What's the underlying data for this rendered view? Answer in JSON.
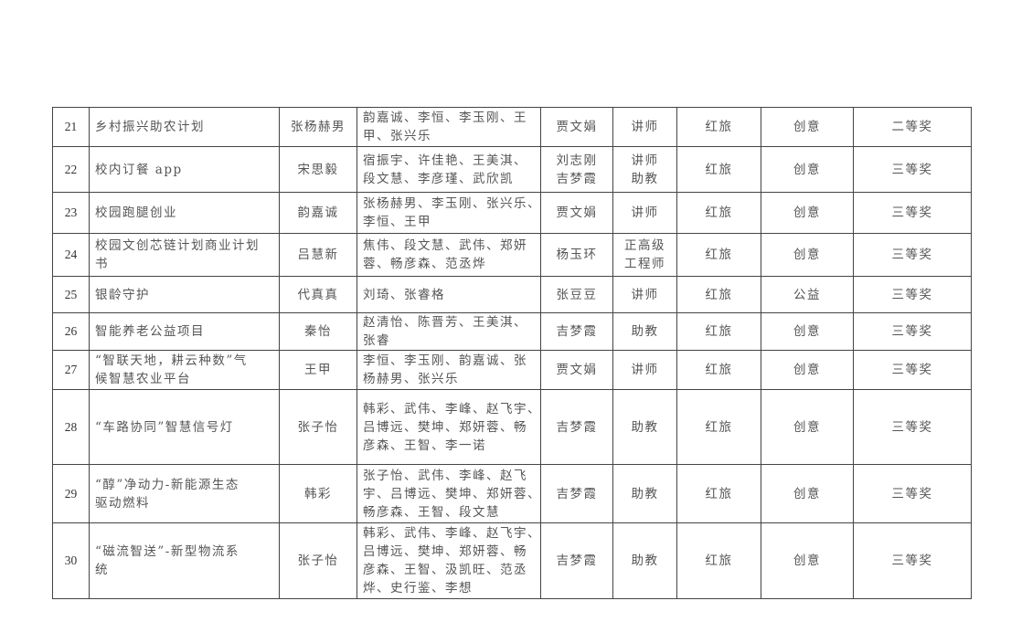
{
  "table": {
    "rows": [
      {
        "no": "21",
        "project": [
          "乡村振兴助农计划"
        ],
        "leader": "张杨赫男",
        "members": [
          "韵嘉诚、李恒、李玉刚、王",
          "甲、张兴乐"
        ],
        "teacher": [
          "贾文娟"
        ],
        "title": [
          "讲师"
        ],
        "track": "红旅",
        "category": "创意",
        "award": "二等奖"
      },
      {
        "no": "22",
        "project": [
          "校内订餐 app"
        ],
        "leader": "宋思毅",
        "members": [
          "宿振宇、许佳艳、王美淇、",
          "段文慧、李彦瑾、武欣凯"
        ],
        "teacher": [
          "刘志刚",
          "吉梦霞"
        ],
        "title": [
          "讲师",
          "助教"
        ],
        "track": "红旅",
        "category": "创意",
        "award": "三等奖"
      },
      {
        "no": "23",
        "project": [
          "校园跑腿创业"
        ],
        "leader": "韵嘉诚",
        "members": [
          "张杨赫男、李玉刚、张兴乐、",
          "李恒、王甲"
        ],
        "teacher": [
          "贾文娟"
        ],
        "title": [
          "讲师"
        ],
        "track": "红旅",
        "category": "创意",
        "award": "三等奖"
      },
      {
        "no": "24",
        "project": [
          "校园文创芯链计划商业计划",
          "书"
        ],
        "leader": "吕慧新",
        "members": [
          "焦伟、段文慧、武伟、郑妍",
          "蓉、畅彦森、范丞烨"
        ],
        "teacher": [
          "杨玉环"
        ],
        "title": [
          "正高级",
          "工程师"
        ],
        "track": "红旅",
        "category": "创意",
        "award": "三等奖"
      },
      {
        "no": "25",
        "project": [
          "银龄守护"
        ],
        "leader": "代真真",
        "members": [
          "刘琦、张睿格"
        ],
        "teacher": [
          "张豆豆"
        ],
        "title": [
          "讲师"
        ],
        "track": "红旅",
        "category": "公益",
        "award": "三等奖"
      },
      {
        "no": "26",
        "project": [
          "智能养老公益项目"
        ],
        "leader": "秦怡",
        "members": [
          "赵清怡、陈晋芳、王美淇、",
          "张睿"
        ],
        "teacher": [
          "吉梦霞"
        ],
        "title": [
          "助教"
        ],
        "track": "红旅",
        "category": "创意",
        "award": "三等奖"
      },
      {
        "no": "27",
        "project": [
          "“智联天地，耕云种数”气",
          "候智慧农业平台"
        ],
        "leader": "王甲",
        "members": [
          "李恒、李玉刚、韵嘉诚、张",
          "杨赫男、张兴乐"
        ],
        "teacher": [
          "贾文娟"
        ],
        "title": [
          "讲师"
        ],
        "track": "红旅",
        "category": "创意",
        "award": "三等奖"
      },
      {
        "no": "28",
        "project": [
          "“车路协同”智慧信号灯"
        ],
        "leader": "张子怡",
        "members": [
          "韩彩、武伟、李峰、赵飞宇、",
          "吕博远、樊坤、郑妍蓉、畅",
          "彦森、王智、李一诺"
        ],
        "teacher": [
          "吉梦霞"
        ],
        "title": [
          "助教"
        ],
        "track": "红旅",
        "category": "创意",
        "award": "三等奖"
      },
      {
        "no": "29",
        "project": [
          "“醇”净动力-新能源生态",
          "驱动燃料"
        ],
        "leader": "韩彩",
        "members": [
          "张子怡、武伟、李峰、赵飞",
          "宇、吕博远、樊坤、郑妍蓉、",
          "畅彦森、王智、段文慧"
        ],
        "teacher": [
          "吉梦霞"
        ],
        "title": [
          "助教"
        ],
        "track": "红旅",
        "category": "创意",
        "award": "三等奖"
      },
      {
        "no": "30",
        "project": [
          "“磁流智送”-新型物流系",
          "统"
        ],
        "leader": "张子怡",
        "members": [
          "韩彩、武伟、李峰、赵飞宇、",
          "吕博远、樊坤、郑妍蓉、畅",
          "彦森、王智、汲凯旺、范丞",
          "烨、史行鉴、李想"
        ],
        "teacher": [
          "吉梦霞"
        ],
        "title": [
          "助教"
        ],
        "track": "红旅",
        "category": "创意",
        "award": "三等奖"
      }
    ]
  }
}
